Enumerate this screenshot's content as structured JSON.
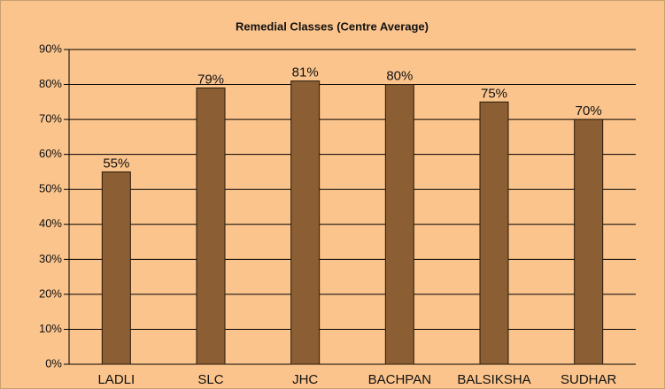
{
  "chart_data": {
    "type": "bar",
    "title": "Remedial Classes (Centre Average)",
    "categories": [
      "LADLI",
      "SLC",
      "JHC",
      "BACHPAN",
      "BALSIKSHA",
      "SUDHAR"
    ],
    "values": [
      55,
      79,
      81,
      80,
      75,
      70
    ],
    "value_labels": [
      "55%",
      "79%",
      "81%",
      "80%",
      "75%",
      "70%"
    ],
    "color": "#8b5e34",
    "ylim": [
      0,
      90
    ],
    "yticks": [
      {
        "value": 0,
        "label": "0%"
      },
      {
        "value": 10,
        "label": "10%"
      },
      {
        "value": 20,
        "label": "20%"
      },
      {
        "value": 30,
        "label": "30%"
      },
      {
        "value": 40,
        "label": "40%"
      },
      {
        "value": 50,
        "label": "50%"
      },
      {
        "value": 60,
        "label": "60%"
      },
      {
        "value": 70,
        "label": "70%"
      },
      {
        "value": 80,
        "label": "80%"
      },
      {
        "value": 90,
        "label": "90%"
      }
    ],
    "grid": true
  }
}
